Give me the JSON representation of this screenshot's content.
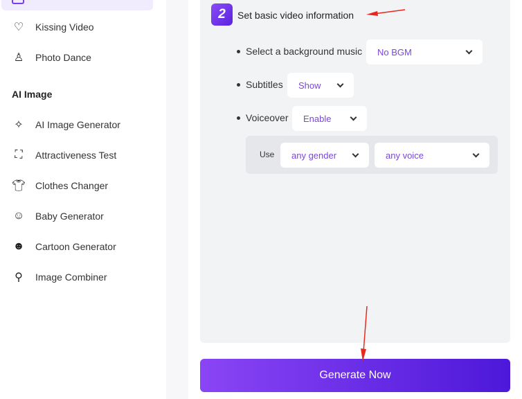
{
  "sidebar": {
    "items_video": [
      {
        "label": "Kissing Video",
        "icon": "heart-hands-icon"
      },
      {
        "label": "Photo Dance",
        "icon": "dancer-icon"
      }
    ],
    "section_title": "AI Image",
    "items_image": [
      {
        "label": "AI Image Generator",
        "icon": "sparkles-icon"
      },
      {
        "label": "Attractiveness Test",
        "icon": "face-scan-icon"
      },
      {
        "label": "Clothes Changer",
        "icon": "shirt-icon"
      },
      {
        "label": "Baby Generator",
        "icon": "baby-icon"
      },
      {
        "label": "Cartoon Generator",
        "icon": "bear-face-icon"
      },
      {
        "label": "Image Combiner",
        "icon": "stroller-icon"
      }
    ]
  },
  "step": {
    "number": "2",
    "title": "Set basic video information"
  },
  "form": {
    "bgm_label": "Select a background music",
    "bgm_value": "No BGM",
    "subtitles_label": "Subtitles",
    "subtitles_value": "Show",
    "voiceover_label": "Voiceover",
    "voiceover_value": "Enable",
    "use_label": "Use",
    "gender_value": "any gender",
    "voice_value": "any voice"
  },
  "generate_label": "Generate Now",
  "colors": {
    "accent": "#7b3ff2",
    "annotation": "#e8281e"
  }
}
